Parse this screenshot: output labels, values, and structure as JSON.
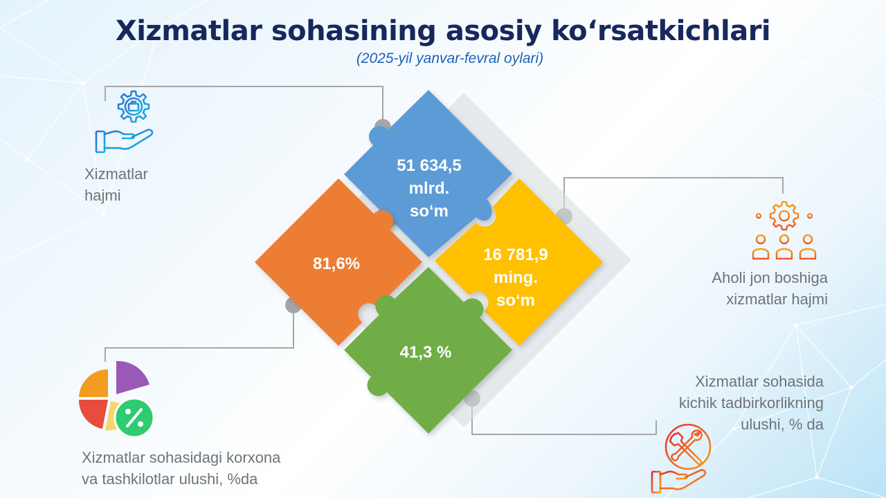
{
  "title": "Xizmatlar sohasining asosiy ko‘rsatkichlari",
  "subtitle": "(2025-yil yanvar-fevral oylari)",
  "indicators": {
    "services_volume": {
      "value": "51 634,5",
      "unit_line1": "mlrd.",
      "unit_line2": "so‘m",
      "label_line1": "Xizmatlar",
      "label_line2": "hajmi",
      "color": "#5b9bd5",
      "icon": "hand-gear-briefcase-icon"
    },
    "per_capita": {
      "value": "16 781,9",
      "unit_line1": "ming.",
      "unit_line2": "so‘m",
      "label_line1": "Aholi jon boshiga",
      "label_line2": "xizmatlar hajmi",
      "color": "#ffc000",
      "icon": "people-gear-icon"
    },
    "small_business_share": {
      "value": "41,3 %",
      "label_line1": "Xizmatlar sohasida",
      "label_line2": "kichik tadbirkorlikning",
      "label_line3": "ulushi, % da",
      "color": "#70ad47",
      "icon": "hand-tools-icon"
    },
    "enterprises_share": {
      "value": "81,6%",
      "label_line1": "Xizmatlar sohasidagi korxona",
      "label_line2": "va tashkilotlar ulushi, %da",
      "color": "#ed7d31",
      "icon": "pie-chart-percent-icon"
    }
  },
  "chart_data": {
    "type": "table",
    "rows": [
      {
        "indicator": "Xizmatlar hajmi",
        "value": 51634.5,
        "unit": "mlrd. so‘m"
      },
      {
        "indicator": "Aholi jon boshiga xizmatlar hajmi",
        "value": 16781.9,
        "unit": "ming. so‘m"
      },
      {
        "indicator": "Xizmatlar sohasida kichik tadbirkorlikning ulushi, % da",
        "value": 41.3,
        "unit": "%"
      },
      {
        "indicator": "Xizmatlar sohasidagi korxona va tashkilotlar ulushi, %da",
        "value": 81.6,
        "unit": "%"
      }
    ]
  }
}
